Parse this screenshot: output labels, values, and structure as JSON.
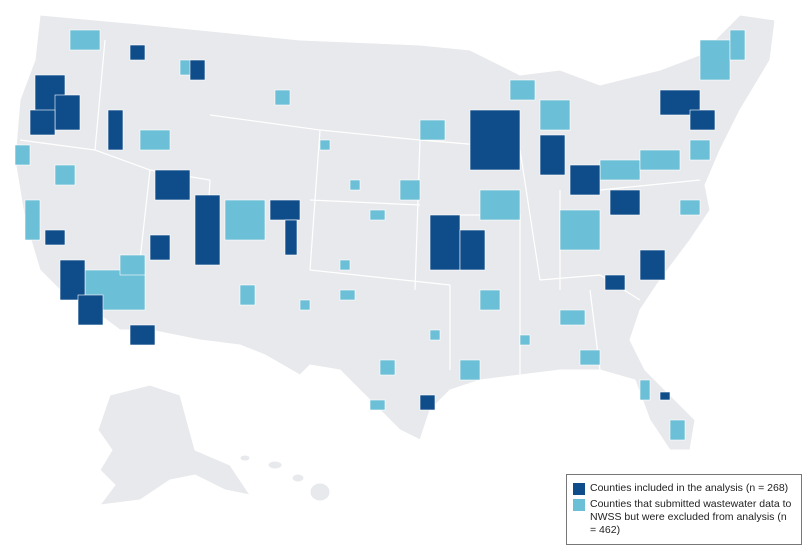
{
  "legend": {
    "items": [
      {
        "label": "Counties included in the analysis (n = 268)",
        "color": "#0f4c8a"
      },
      {
        "label": "Counties that submitted wastewater data to NWSS but were excluded from analysis (n = 462)",
        "color": "#6bbfd6"
      }
    ]
  }
}
